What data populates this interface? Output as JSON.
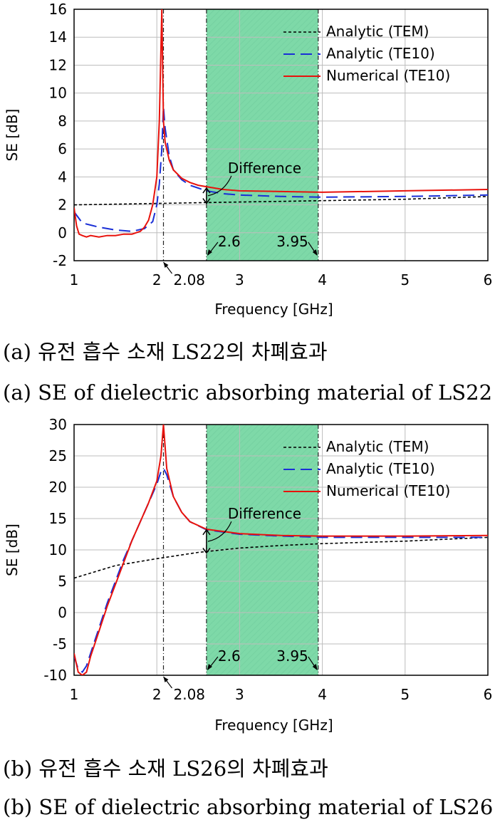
{
  "chart_data": [
    {
      "type": "line",
      "xlabel": "Frequency [GHz]",
      "ylabel": "SE [dB]",
      "xlim": [
        1,
        6
      ],
      "ylim": [
        -2,
        16
      ],
      "xticks": [
        1,
        2,
        3,
        4,
        5,
        6
      ],
      "yticks": [
        -2,
        0,
        2,
        4,
        6,
        8,
        10,
        12,
        14,
        16
      ],
      "grid": true,
      "legend_position": "top-right",
      "shaded_band": {
        "from": 2.6,
        "to": 3.95,
        "color": "#7ed9a8"
      },
      "cutoff_marker": {
        "x": 2.08,
        "label": "2.08"
      },
      "band_labels": [
        "2.6",
        "3.95"
      ],
      "annotation": {
        "text": "Difference",
        "x": 2.6,
        "y_low": 2.1,
        "y_high": 3.2
      },
      "series": [
        {
          "name": "Analytic (TEM)",
          "color": "#000000",
          "dash": "4,3",
          "x": [
            1.0,
            1.5,
            2.0,
            2.5,
            3.0,
            3.5,
            4.0,
            4.5,
            5.0,
            5.5,
            6.0
          ],
          "y": [
            2.0,
            2.05,
            2.1,
            2.15,
            2.2,
            2.25,
            2.3,
            2.35,
            2.4,
            2.5,
            2.6
          ]
        },
        {
          "name": "Analytic (TE10)",
          "color": "#1a2fd6",
          "dash": "16,8",
          "x": [
            1.0,
            1.1,
            1.3,
            1.5,
            1.7,
            1.85,
            1.95,
            2.0,
            2.03,
            2.06,
            2.08,
            2.1,
            2.15,
            2.2,
            2.3,
            2.4,
            2.5,
            2.6,
            2.8,
            3.0,
            3.5,
            4.0,
            5.0,
            6.0
          ],
          "y": [
            1.5,
            0.7,
            0.4,
            0.2,
            0.1,
            0.3,
            0.8,
            2.0,
            3.5,
            6.0,
            9.0,
            7.5,
            5.5,
            4.5,
            3.8,
            3.4,
            3.2,
            3.0,
            2.8,
            2.7,
            2.6,
            2.55,
            2.6,
            2.7
          ]
        },
        {
          "name": "Numerical (TE10)",
          "color": "#e8120c",
          "dash": "",
          "x": [
            1.0,
            1.03,
            1.06,
            1.1,
            1.15,
            1.2,
            1.3,
            1.4,
            1.5,
            1.6,
            1.7,
            1.8,
            1.85,
            1.9,
            1.95,
            2.0,
            2.03,
            2.06,
            2.08,
            2.1,
            2.15,
            2.2,
            2.3,
            2.4,
            2.5,
            2.6,
            2.8,
            3.0,
            3.5,
            4.0,
            5.0,
            6.0
          ],
          "y": [
            1.8,
            0.5,
            -0.1,
            -0.2,
            -0.3,
            -0.2,
            -0.3,
            -0.2,
            -0.2,
            -0.1,
            -0.1,
            0.1,
            0.4,
            0.9,
            2.0,
            4.0,
            8.0,
            16.0,
            8.0,
            6.5,
            5.2,
            4.5,
            3.9,
            3.6,
            3.4,
            3.3,
            3.1,
            3.0,
            2.95,
            2.9,
            3.0,
            3.1
          ]
        }
      ]
    },
    {
      "type": "line",
      "xlabel": "Frequency [GHz]",
      "ylabel": "SE [dB]",
      "xlim": [
        1,
        6
      ],
      "ylim": [
        -10,
        30
      ],
      "xticks": [
        1,
        2,
        3,
        4,
        5,
        6
      ],
      "yticks": [
        -10,
        -5,
        0,
        5,
        10,
        15,
        20,
        25,
        30
      ],
      "grid": true,
      "legend_position": "top-right",
      "shaded_band": {
        "from": 2.6,
        "to": 3.95,
        "color": "#7ed9a8"
      },
      "cutoff_marker": {
        "x": 2.08,
        "label": "2.08"
      },
      "band_labels": [
        "2.6",
        "3.95"
      ],
      "annotation": {
        "text": "Difference",
        "x": 2.6,
        "y_low": 9.5,
        "y_high": 13.2
      },
      "series": [
        {
          "name": "Analytic (TEM)",
          "color": "#000000",
          "dash": "4,3",
          "x": [
            1.0,
            1.5,
            2.0,
            2.5,
            3.0,
            3.5,
            4.0,
            4.5,
            5.0,
            5.5,
            6.0
          ],
          "y": [
            5.5,
            7.5,
            8.6,
            9.6,
            10.3,
            10.7,
            11.0,
            11.2,
            11.4,
            11.7,
            12.0
          ]
        },
        {
          "name": "Analytic (TE10)",
          "color": "#1a2fd6",
          "dash": "16,8",
          "x": [
            1.0,
            1.05,
            1.1,
            1.15,
            1.2,
            1.3,
            1.4,
            1.5,
            1.6,
            1.7,
            1.8,
            1.9,
            2.0,
            2.05,
            2.08,
            2.12,
            2.2,
            2.3,
            2.4,
            2.6,
            3.0,
            3.5,
            4.0,
            5.0,
            6.0
          ],
          "y": [
            -7.0,
            -9.0,
            -9.5,
            -8.5,
            -6.5,
            -2.5,
            1.5,
            5.0,
            8.5,
            11.5,
            14.5,
            17.5,
            20.5,
            22.5,
            23.0,
            22.0,
            18.5,
            16.0,
            14.5,
            13.2,
            12.5,
            12.2,
            12.0,
            12.0,
            12.0
          ]
        },
        {
          "name": "Numerical (TE10)",
          "color": "#e8120c",
          "dash": "",
          "x": [
            1.0,
            1.05,
            1.1,
            1.15,
            1.2,
            1.3,
            1.4,
            1.5,
            1.6,
            1.7,
            1.8,
            1.9,
            2.0,
            2.05,
            2.08,
            2.12,
            2.2,
            2.3,
            2.4,
            2.6,
            3.0,
            3.5,
            4.0,
            5.0,
            6.0
          ],
          "y": [
            -6.5,
            -9.5,
            -10.0,
            -9.5,
            -7.0,
            -3.0,
            1.0,
            4.5,
            8.0,
            11.5,
            14.5,
            17.5,
            21.0,
            25.0,
            30.0,
            23.0,
            18.5,
            16.0,
            14.5,
            13.3,
            12.6,
            12.3,
            12.2,
            12.2,
            12.3
          ]
        }
      ]
    }
  ],
  "captions": {
    "a_korean": "(a) 유전 흡수 소재 LS22의 차폐효과",
    "a_english": "(a) SE of dielectric absorbing material of LS22",
    "b_korean": "(b) 유전 흡수 소재 LS26의 차폐효과",
    "b_english": "(b) SE of dielectric absorbing material of LS26"
  }
}
